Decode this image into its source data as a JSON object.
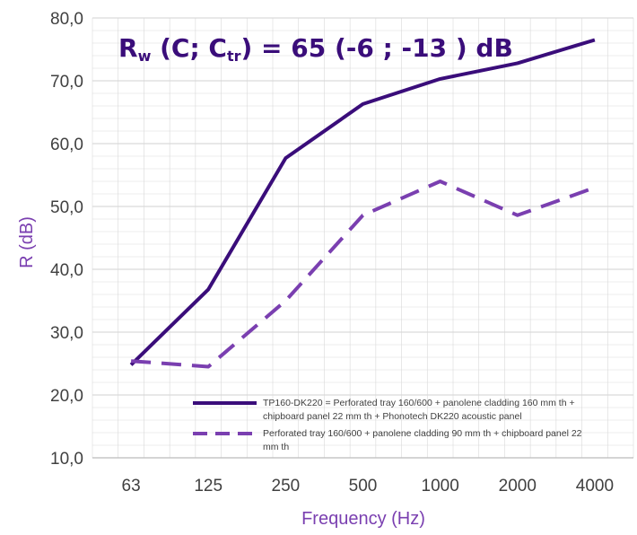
{
  "chart_data": {
    "type": "line",
    "title": "",
    "xlabel": "Frequency (Hz)",
    "ylabel": "R (dB)",
    "categories": [
      "63",
      "125",
      "250",
      "500",
      "1000",
      "2000",
      "4000"
    ],
    "ylim": [
      10,
      80
    ],
    "yticks": [
      "10,0",
      "20,0",
      "30,0",
      "40,0",
      "50,0",
      "60,0",
      "70,0",
      "80,0"
    ],
    "grid": true,
    "legend_position": "bottom-right",
    "series": [
      {
        "name": "TP160-DK220 = Perforated tray 160/600 + panolene cladding 160 mm th + chipboard panel 22 mm th + Phonotech DK220 acoustic panel",
        "legend_lines": [
          "TP160-DK220 = Perforated tray 160/600 + panolene cladding 160 mm th +",
          "chipboard panel 22 mm th + Phonotech DK220 acoustic panel"
        ],
        "values": [
          24.8,
          36.8,
          57.7,
          66.3,
          70.3,
          72.8,
          76.5
        ],
        "color": "#3a0d7a",
        "style": "solid"
      },
      {
        "name": "Perforated tray 160/600 + panolene cladding 90 mm th + chipboard panel 22 mm th",
        "legend_lines": [
          "Perforated tray 160/600 + panolene cladding 90 mm th + chipboard panel 22",
          "mm th"
        ],
        "values": [
          25.4,
          24.5,
          35.0,
          48.6,
          54.0,
          48.6,
          53.0
        ],
        "color": "#7a3fb0",
        "style": "dashed"
      }
    ],
    "annotation": {
      "r": "R",
      "w": "w",
      "p1": " (C; C",
      "tr": "tr",
      "p2": ") =  65 (-6 ; -13 ) dB",
      "color": "#3a0d7a"
    },
    "axis_title_color": "#7a3fb0",
    "grid_color": "#d9d9d9"
  }
}
